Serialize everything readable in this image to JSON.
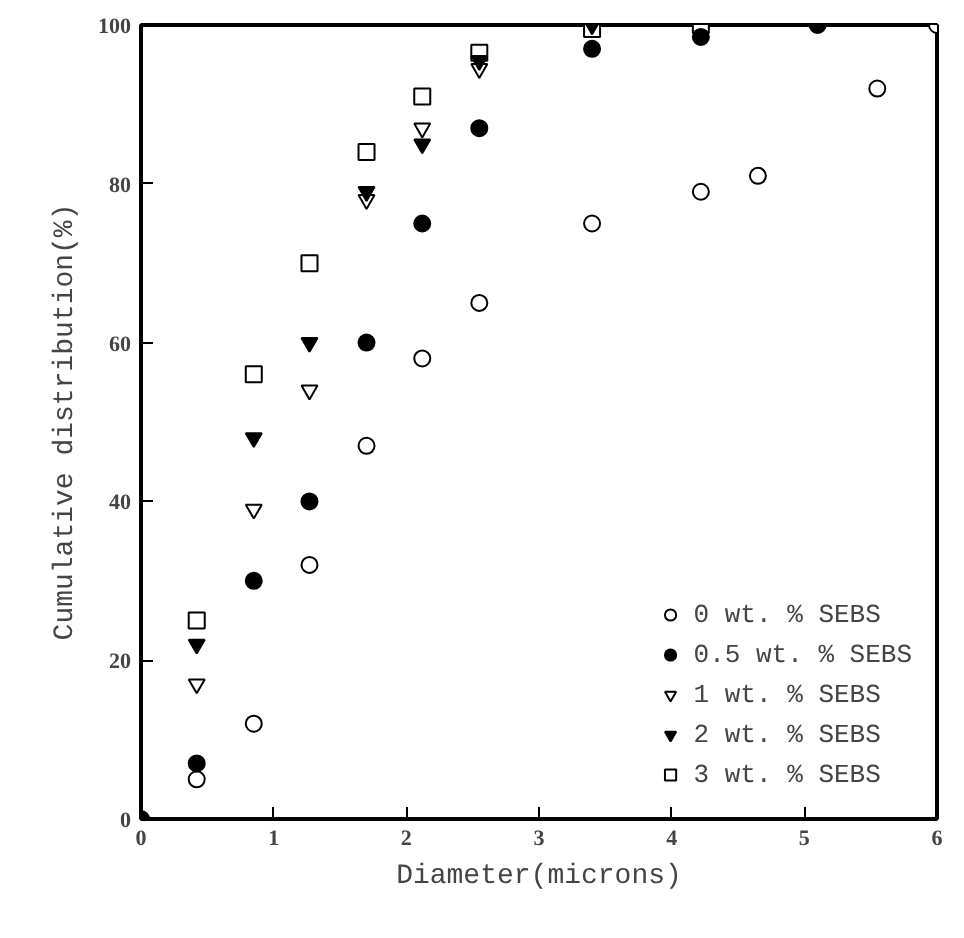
{
  "chart_data": {
    "type": "scatter",
    "xlabel": "Diameter(microns)",
    "ylabel": "Cumulative distribution(%)",
    "xlim": [
      0,
      6
    ],
    "ylim": [
      0,
      100
    ],
    "xticks": [
      0,
      1,
      2,
      3,
      4,
      5,
      6
    ],
    "yticks": [
      0,
      20,
      40,
      60,
      80,
      100
    ],
    "grid": false,
    "legend": "bottom right",
    "series": [
      {
        "name": "0 wt. % SEBS",
        "color": "#ffffff",
        "marker": "circle",
        "x": [
          0.42,
          0.85,
          1.27,
          1.7,
          2.12,
          2.55,
          3.4,
          4.22,
          4.65,
          5.55,
          6
        ],
        "values": [
          5,
          12,
          32,
          47,
          58,
          65,
          75,
          79,
          81,
          92,
          100
        ]
      },
      {
        "name": "0.5 wt. % SEBS",
        "color": "#000000",
        "marker": "circle",
        "x": [
          0,
          0.42,
          0.85,
          1.27,
          1.7,
          2.12,
          2.55,
          3.4,
          4.22,
          5.1
        ],
        "values": [
          0,
          7,
          30,
          40,
          60,
          75,
          87,
          97,
          98.5,
          100
        ]
      },
      {
        "name": "1 wt. % SEBS",
        "color": "#ffffff",
        "marker": "triangle",
        "x": [
          0.42,
          0.85,
          1.27,
          1.7,
          2.12,
          2.55
        ],
        "values": [
          17,
          39,
          54,
          78,
          87,
          94.5
        ]
      },
      {
        "name": "2 wt. % SEBS",
        "color": "#000000",
        "marker": "triangle",
        "x": [
          0.42,
          0.85,
          1.27,
          1.7,
          2.12,
          2.55,
          3.4
        ],
        "values": [
          22,
          48,
          60,
          79,
          85,
          95.5,
          100
        ]
      },
      {
        "name": "3 wt. % SEBS",
        "color": "#ffffff",
        "marker": "square",
        "x": [
          0.42,
          0.85,
          1.27,
          1.7,
          2.12,
          2.55,
          3.4,
          4.22
        ],
        "values": [
          25,
          56,
          70,
          84,
          91,
          96.5,
          99.5,
          100
        ]
      }
    ]
  }
}
